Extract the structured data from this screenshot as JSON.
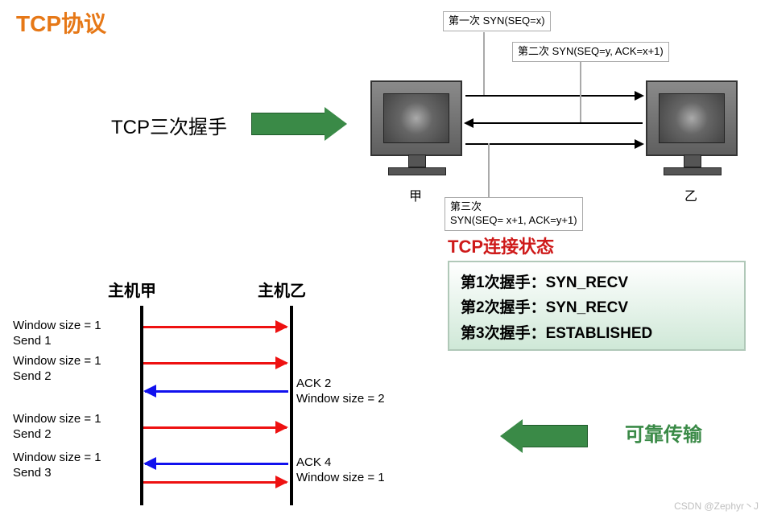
{
  "title": "TCP协议",
  "handshake_label": "TCP三次握手",
  "monitors": {
    "a": "甲",
    "b": "乙"
  },
  "callouts": {
    "c1": "第一次 SYN(SEQ=x)",
    "c2": "第二次 SYN(SEQ=y, ACK=x+1)",
    "c3": "第三次\nSYN(SEQ= x+1, ACK=y+1)"
  },
  "status": {
    "title": "TCP连接状态",
    "lines": [
      "第1次握手：SYN_RECV",
      "第2次握手：SYN_RECV",
      "第3次握手：ESTABLISHED"
    ]
  },
  "reliable_label": "可靠传输",
  "sliding_window": {
    "host_a": "主机甲",
    "host_b": "主机乙",
    "t1": "Window size = 1\nSend 1",
    "t2": "Window size = 1\nSend 2",
    "t3": "ACK 2\nWindow size = 2",
    "t4": "Window size = 1\nSend 2",
    "t5": "Window size = 1\nSend 3",
    "t6": "ACK 4\nWindow size = 1",
    "arrows": [
      {
        "class": "sa1",
        "color": "red",
        "dir": "r"
      },
      {
        "class": "sa2",
        "color": "red",
        "dir": "r"
      },
      {
        "class": "sa3",
        "color": "blue",
        "dir": "l"
      },
      {
        "class": "sa4",
        "color": "red",
        "dir": "r"
      },
      {
        "class": "sa5",
        "color": "blue",
        "dir": "l"
      },
      {
        "class": "sa6",
        "color": "red",
        "dir": "r"
      }
    ]
  },
  "watermark": "CSDN @Zephyr丶J",
  "colors": {
    "title": "#e67817",
    "accent_green": "#3a8a47",
    "status_title": "#ce1a1a",
    "arrow_red": "#e11111",
    "arrow_blue": "#1111ee"
  }
}
